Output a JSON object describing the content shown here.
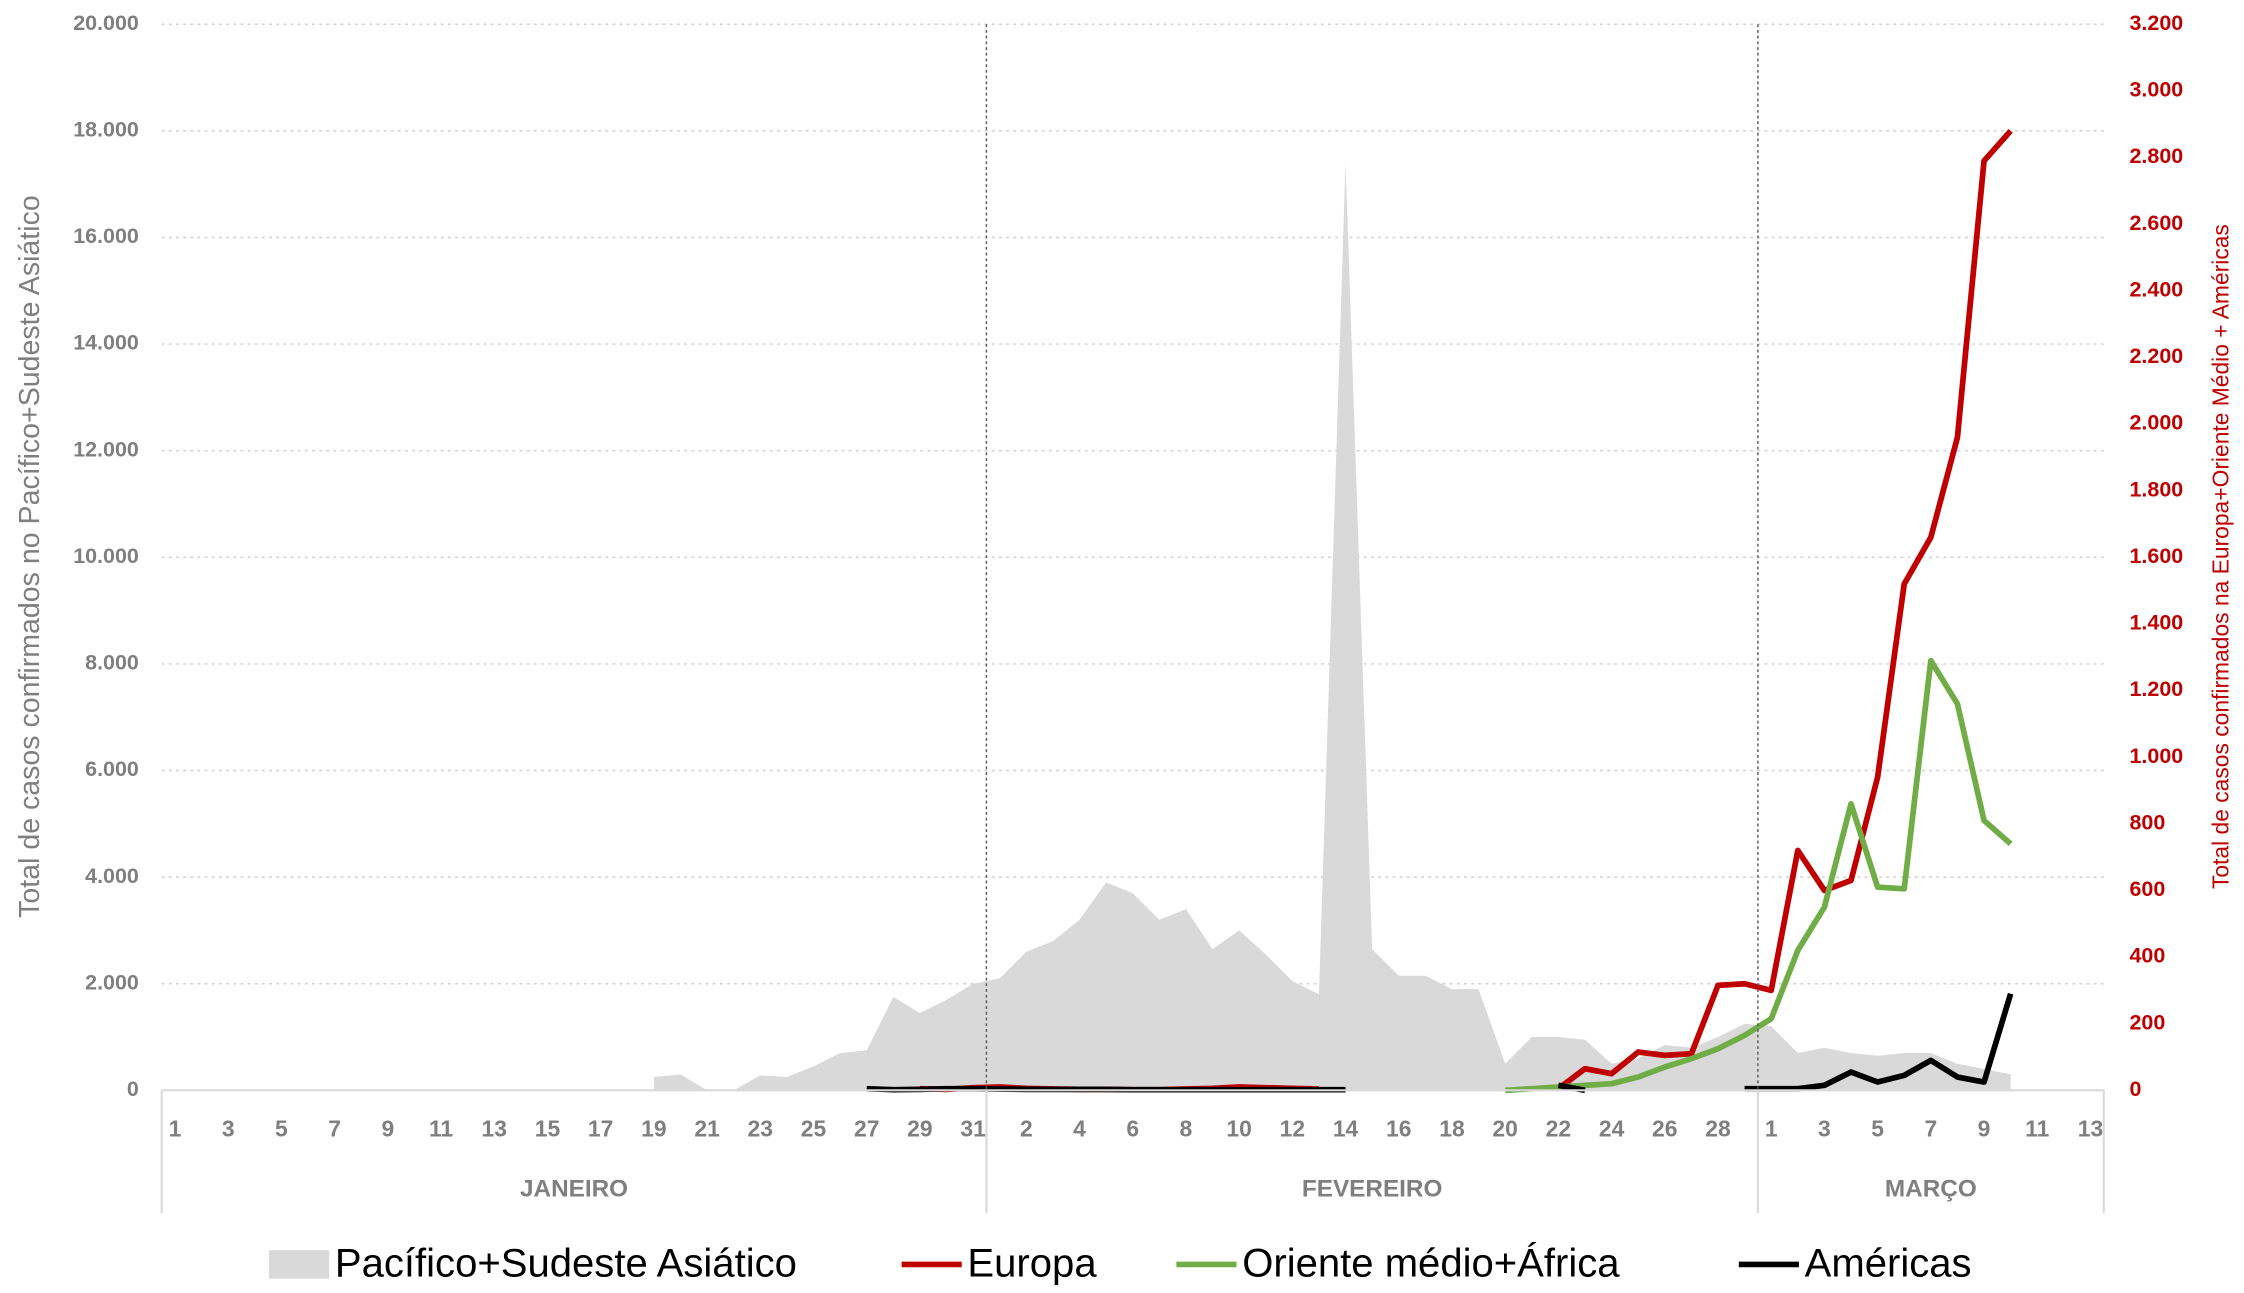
{
  "chart_data": {
    "type": "area-line",
    "y_axis_label": "Total de casos confirmados no Pacífico+Sudeste Asiático",
    "y2_axis_label": "Total de casos confirmados na Europa+Oriente Médio + Américas",
    "categories": [
      "1",
      null,
      "3",
      null,
      "5",
      null,
      "7",
      null,
      "9",
      null,
      "11",
      null,
      "13",
      null,
      "15",
      null,
      "17",
      null,
      "19",
      null,
      "21",
      null,
      "23",
      null,
      "25",
      null,
      "27",
      null,
      "29",
      null,
      "31",
      null,
      "2",
      null,
      "4",
      null,
      "6",
      null,
      "8",
      null,
      "10",
      null,
      "12",
      null,
      "14",
      null,
      "16",
      null,
      "18",
      null,
      "20",
      null,
      "22",
      null,
      "24",
      null,
      "26",
      null,
      "28",
      null,
      "1",
      null,
      "3",
      null,
      "5",
      null,
      "7",
      null,
      "9",
      null,
      "11",
      null,
      "13"
    ],
    "month_groups": [
      {
        "label": "JANEIRO",
        "span": 31
      },
      {
        "label": "FEVEREIRO",
        "span": 29
      },
      {
        "label": "MARÇO",
        "span": 13
      }
    ],
    "ylim": [
      0,
      20000
    ],
    "yticks": [
      0,
      {
        "value": 2000,
        "label": "2.000"
      },
      {
        "value": 4000,
        "label": "4.000"
      },
      {
        "value": 6000,
        "label": "6.000"
      },
      {
        "value": 8000,
        "label": "8.000"
      },
      {
        "value": 10000,
        "label": "10.000"
      },
      {
        "value": 12000,
        "label": "12.000"
      },
      {
        "value": 14000,
        "label": "14.000"
      },
      {
        "value": 16000,
        "label": "16.000"
      },
      {
        "value": 18000,
        "label": "18.000"
      },
      {
        "value": 20000,
        "label": "20.000"
      }
    ],
    "y2lim": [
      0,
      3200
    ],
    "y2ticks": [
      0,
      200,
      400,
      600,
      800,
      {
        "value": 1000,
        "label": "1.000"
      },
      {
        "value": 1200,
        "label": "1.200"
      },
      {
        "value": 1400,
        "label": "1.400"
      },
      {
        "value": 1600,
        "label": "1.600"
      },
      {
        "value": 1800,
        "label": "1.800"
      },
      {
        "value": 2000,
        "label": "2.000"
      },
      {
        "value": 2200,
        "label": "2.200"
      },
      {
        "value": 2400,
        "label": "2.400"
      },
      {
        "value": 2600,
        "label": "2.600"
      },
      {
        "value": 2800,
        "label": "2.800"
      },
      {
        "value": 3000,
        "label": "3.000"
      },
      {
        "value": 3200,
        "label": "3.200"
      }
    ],
    "grid": true,
    "legend": "bottom",
    "series": [
      {
        "name": "Pacífico+Sudeste Asiático",
        "color": "#d9d9d9",
        "kind": "area",
        "axis": "y",
        "values": [
          null,
          null,
          null,
          null,
          null,
          null,
          null,
          null,
          null,
          null,
          null,
          null,
          null,
          null,
          null,
          null,
          null,
          null,
          250,
          300,
          0,
          0,
          280,
          250,
          450,
          700,
          750,
          1750,
          1450,
          1700,
          2000,
          2100,
          2600,
          2800,
          3200,
          3900,
          3700,
          3200,
          3400,
          2650,
          3000,
          2550,
          2050,
          1800,
          17400,
          2650,
          2150,
          2150,
          1900,
          1900,
          500,
          1000,
          1000,
          950,
          500,
          600,
          850,
          800,
          1000,
          1250,
          1200,
          700,
          800,
          700,
          650,
          700,
          700,
          500,
          400,
          300,
          null,
          null,
          null
        ]
      },
      {
        "name": "Europa",
        "color": "#c00000",
        "kind": "line",
        "axis": "y2",
        "values": [
          null,
          null,
          null,
          null,
          null,
          null,
          null,
          null,
          null,
          null,
          null,
          null,
          null,
          null,
          null,
          null,
          null,
          null,
          null,
          null,
          null,
          null,
          null,
          null,
          null,
          null,
          null,
          null,
          5,
          3,
          8,
          10,
          6,
          4,
          3,
          3,
          2,
          2,
          4,
          6,
          10,
          8,
          6,
          4,
          null,
          null,
          null,
          null,
          null,
          null,
          null,
          null,
          5,
          65,
          50,
          115,
          105,
          110,
          315,
          320,
          300,
          720,
          600,
          630,
          940,
          1520,
          1660,
          1960,
          2790,
          2880,
          null,
          null,
          null
        ]
      },
      {
        "name": "Oriente médio+África",
        "color": "#70ad47",
        "kind": "line",
        "axis": "y2",
        "values": [
          null,
          null,
          null,
          null,
          null,
          null,
          null,
          null,
          null,
          null,
          null,
          null,
          null,
          null,
          null,
          null,
          null,
          null,
          null,
          null,
          null,
          null,
          null,
          null,
          null,
          null,
          null,
          null,
          null,
          null,
          null,
          null,
          null,
          null,
          null,
          null,
          null,
          null,
          null,
          null,
          null,
          null,
          null,
          null,
          null,
          null,
          null,
          null,
          null,
          null,
          0,
          5,
          10,
          15,
          20,
          40,
          70,
          95,
          125,
          165,
          215,
          420,
          550,
          860,
          610,
          605,
          1290,
          1160,
          810,
          740,
          null,
          null,
          null
        ]
      },
      {
        "name": "Américas",
        "color": "#000000",
        "kind": "line",
        "axis": "y2",
        "values": [
          null,
          null,
          null,
          null,
          null,
          null,
          null,
          null,
          null,
          null,
          null,
          null,
          null,
          null,
          null,
          null,
          null,
          null,
          null,
          null,
          null,
          null,
          null,
          null,
          null,
          null,
          5,
          2,
          3,
          5,
          5,
          4,
          3,
          3,
          3,
          3,
          2,
          2,
          2,
          2,
          2,
          2,
          2,
          2,
          2,
          null,
          null,
          null,
          null,
          null,
          null,
          null,
          15,
          0,
          null,
          null,
          null,
          null,
          null,
          5,
          5,
          5,
          15,
          55,
          25,
          45,
          90,
          40,
          25,
          290,
          null,
          null,
          null
        ]
      }
    ]
  }
}
